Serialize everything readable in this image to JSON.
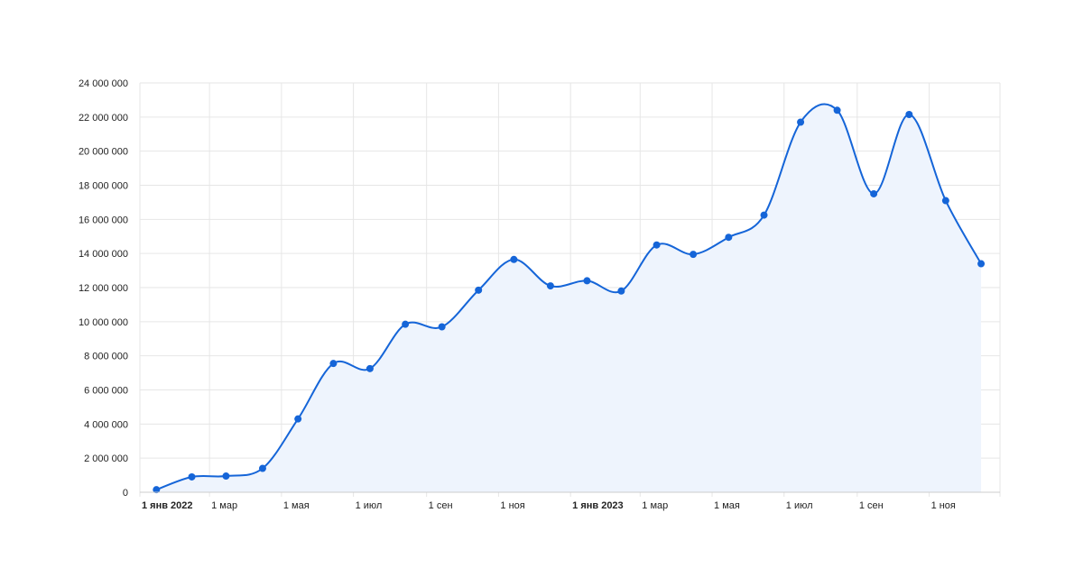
{
  "chart_data": {
    "type": "area",
    "title": "",
    "xlabel": "",
    "ylabel": "",
    "ylim": [
      0,
      24000000
    ],
    "xlim": [
      "2022-01-01",
      "2023-12-31"
    ],
    "grid": true,
    "legend": "none",
    "colors": {
      "line": "#1565d8",
      "fill": "#eef4fd",
      "point": "#1565d8",
      "grid": "#e6e6e6"
    },
    "y_ticks": [
      {
        "value": 0,
        "label": "0"
      },
      {
        "value": 2000000,
        "label": "2 000 000"
      },
      {
        "value": 4000000,
        "label": "4 000 000"
      },
      {
        "value": 6000000,
        "label": "6 000 000"
      },
      {
        "value": 8000000,
        "label": "8 000 000"
      },
      {
        "value": 10000000,
        "label": "10 000 000"
      },
      {
        "value": 12000000,
        "label": "12 000 000"
      },
      {
        "value": 14000000,
        "label": "14 000 000"
      },
      {
        "value": 16000000,
        "label": "16 000 000"
      },
      {
        "value": 18000000,
        "label": "18 000 000"
      },
      {
        "value": 20000000,
        "label": "20 000 000"
      },
      {
        "value": 22000000,
        "label": "22 000 000"
      },
      {
        "value": 24000000,
        "label": "24 000 000"
      }
    ],
    "x_ticks": [
      {
        "date": "2022-01-01",
        "label": "1 янв 2022",
        "bold": true
      },
      {
        "date": "2022-03-01",
        "label": "1 мар",
        "bold": false
      },
      {
        "date": "2022-05-01",
        "label": "1 мая",
        "bold": false
      },
      {
        "date": "2022-07-01",
        "label": "1 июл",
        "bold": false
      },
      {
        "date": "2022-09-01",
        "label": "1 сен",
        "bold": false
      },
      {
        "date": "2022-11-01",
        "label": "1 ноя",
        "bold": false
      },
      {
        "date": "2023-01-01",
        "label": "1 янв 2023",
        "bold": true
      },
      {
        "date": "2023-03-01",
        "label": "1 мар",
        "bold": false
      },
      {
        "date": "2023-05-01",
        "label": "1 мая",
        "bold": false
      },
      {
        "date": "2023-07-01",
        "label": "1 июл",
        "bold": false
      },
      {
        "date": "2023-09-01",
        "label": "1 сен",
        "bold": false
      },
      {
        "date": "2023-11-01",
        "label": "1 ноя",
        "bold": false
      }
    ],
    "series": [
      {
        "points": [
          {
            "x": "2022-01-15",
            "y": 150000
          },
          {
            "x": "2022-02-14",
            "y": 900000
          },
          {
            "x": "2022-03-15",
            "y": 950000
          },
          {
            "x": "2022-04-15",
            "y": 1400000
          },
          {
            "x": "2022-05-15",
            "y": 4300000
          },
          {
            "x": "2022-06-14",
            "y": 7550000
          },
          {
            "x": "2022-07-15",
            "y": 7250000
          },
          {
            "x": "2022-08-14",
            "y": 9850000
          },
          {
            "x": "2022-09-14",
            "y": 9700000
          },
          {
            "x": "2022-10-15",
            "y": 11850000
          },
          {
            "x": "2022-11-14",
            "y": 13650000
          },
          {
            "x": "2022-12-15",
            "y": 12100000
          },
          {
            "x": "2023-01-15",
            "y": 12400000
          },
          {
            "x": "2023-02-13",
            "y": 11800000
          },
          {
            "x": "2023-03-15",
            "y": 14500000
          },
          {
            "x": "2023-04-15",
            "y": 13950000
          },
          {
            "x": "2023-05-15",
            "y": 14950000
          },
          {
            "x": "2023-06-14",
            "y": 16250000
          },
          {
            "x": "2023-07-15",
            "y": 21700000
          },
          {
            "x": "2023-08-15",
            "y": 22400000
          },
          {
            "x": "2023-09-15",
            "y": 17500000
          },
          {
            "x": "2023-10-15",
            "y": 22150000
          },
          {
            "x": "2023-11-15",
            "y": 17100000
          },
          {
            "x": "2023-12-15",
            "y": 13400000
          }
        ]
      }
    ]
  }
}
